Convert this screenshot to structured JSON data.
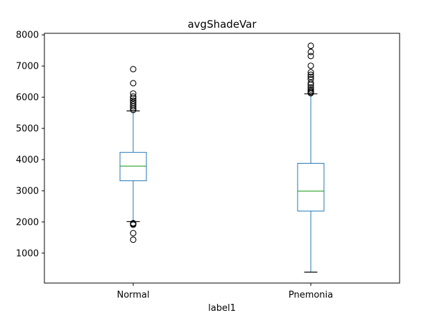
{
  "chart_data": {
    "type": "box",
    "title": "avgShadeVar",
    "xlabel": "label1",
    "ylabel": "",
    "ylim": [
      40,
      8050
    ],
    "yticks": [
      1000,
      2000,
      3000,
      4000,
      5000,
      6000,
      7000,
      8000
    ],
    "ytick_labels": [
      "1000",
      "2000",
      "3000",
      "4000",
      "5000",
      "6000",
      "7000",
      "8000"
    ],
    "grid": false,
    "categories": [
      "Normal",
      "Pnemonia"
    ],
    "boxes": [
      {
        "name": "Normal",
        "whisker_low": 2010,
        "q1": 3320,
        "median": 3790,
        "q3": 4230,
        "whisker_high": 5560,
        "outliers": [
          1430,
          1640,
          1910,
          1940,
          1960,
          5590,
          5650,
          5710,
          5770,
          5830,
          5890,
          5960,
          6020,
          6120,
          6450,
          6900
        ]
      },
      {
        "name": "Pnemonia",
        "whisker_low": 390,
        "q1": 2350,
        "median": 2990,
        "q3": 3880,
        "whisker_high": 6110,
        "outliers": [
          6130,
          6160,
          6200,
          6250,
          6320,
          6400,
          6460,
          6580,
          6650,
          6720,
          6800,
          7010,
          7320,
          7450,
          7650
        ]
      }
    ],
    "colors": {
      "box": "#1f77b4",
      "median": "#2ca02c",
      "outlier": "#000000",
      "whisker_cap": "#000000",
      "axes": "#000000"
    }
  }
}
